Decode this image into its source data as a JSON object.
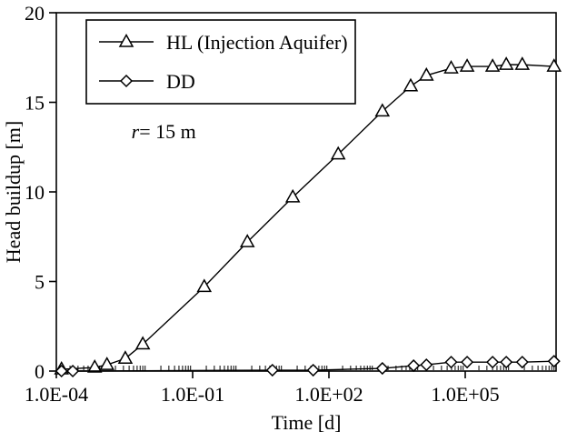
{
  "figure": {
    "background": "#ffffff",
    "line_color": "#000000",
    "marker_fill": "#ffffff"
  },
  "chart_data": {
    "type": "line",
    "title": "",
    "xlabel": "Time [d]",
    "ylabel": "Head buildup [m]",
    "x_scale": "log",
    "xlim": [
      0.0001,
      10000000.0
    ],
    "ylim": [
      0,
      20
    ],
    "x_ticks": [
      {
        "t": 0.0001,
        "label": "1.0E-04"
      },
      {
        "t": 0.1,
        "label": "1.0E-01"
      },
      {
        "t": 100.0,
        "label": "1.0E+02"
      },
      {
        "t": 100000.0,
        "label": "1.0E+05"
      }
    ],
    "y_ticks": [
      {
        "v": 0,
        "label": "0"
      },
      {
        "v": 5,
        "label": "5"
      },
      {
        "v": 10,
        "label": "10"
      },
      {
        "v": 15,
        "label": "15"
      },
      {
        "v": 20,
        "label": "20"
      }
    ],
    "grid": false,
    "legend_position": "top-left",
    "annotation": {
      "italic": "r",
      "text": "= 15 m",
      "x": 0.0045,
      "y": 13.0
    },
    "series": [
      {
        "name": "HL (Injection Aquifer)",
        "marker": "triangle",
        "x": [
          0.00013,
          0.0007,
          0.0013,
          0.0033,
          0.008,
          0.18,
          1.6,
          16,
          160,
          1500,
          6300,
          14000.0,
          49000.0,
          110000.0,
          400000.0,
          800000.0,
          1800000.0,
          9000000.0
        ],
        "y": [
          0.1,
          0.2,
          0.35,
          0.7,
          1.5,
          4.7,
          7.2,
          9.7,
          12.1,
          14.5,
          15.9,
          16.5,
          16.9,
          17.0,
          17.0,
          17.1,
          17.1,
          17.0
        ]
      },
      {
        "name": "DD",
        "marker": "diamond",
        "x": [
          0.00013,
          0.00023,
          5.7,
          45,
          1500,
          7300,
          14000.0,
          49000.0,
          110000.0,
          400000.0,
          800000.0,
          1800000.0,
          9000000.0
        ],
        "y": [
          0.0,
          0.0,
          0.05,
          0.05,
          0.15,
          0.3,
          0.35,
          0.5,
          0.5,
          0.5,
          0.5,
          0.5,
          0.55
        ]
      }
    ]
  }
}
